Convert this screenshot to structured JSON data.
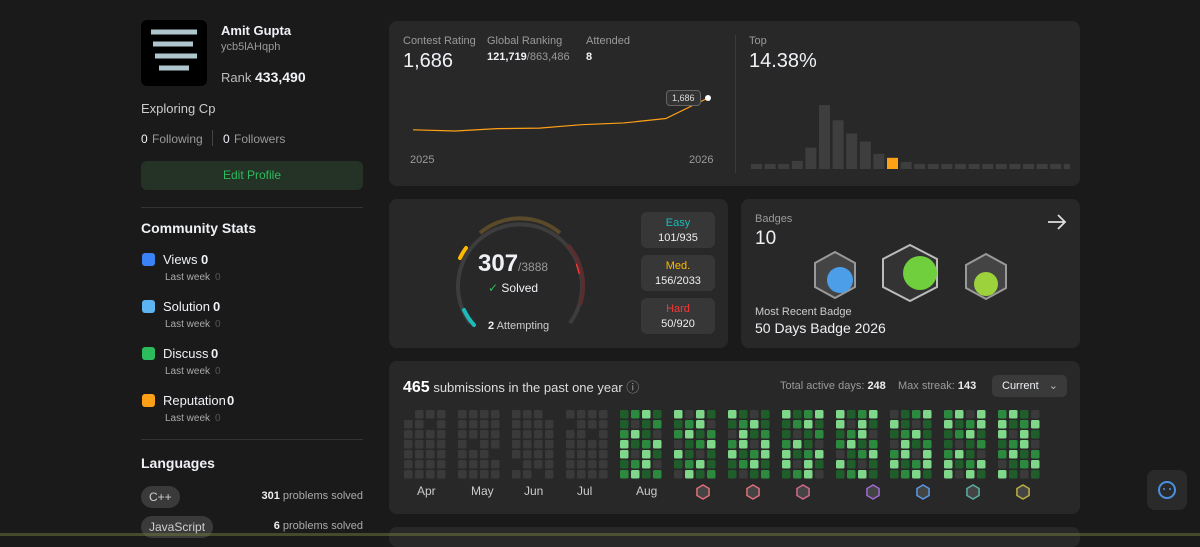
{
  "profile": {
    "name": "Amit Gupta",
    "username": "ycb5lAHqph",
    "rank_label": "Rank",
    "rank": "433,490",
    "bio": "Exploring Cp",
    "following_count": "0",
    "following_label": "Following",
    "followers_count": "0",
    "followers_label": "Followers",
    "edit_button": "Edit Profile"
  },
  "community_stats": {
    "title": "Community Stats",
    "items": [
      {
        "label": "Views",
        "value": "0",
        "period": "Last week",
        "change": "0",
        "color": "#3b82f6"
      },
      {
        "label": "Solution",
        "value": "0",
        "period": "Last week",
        "change": "0",
        "color": "#5eb4f0"
      },
      {
        "label": "Discuss",
        "value": "0",
        "period": "Last week",
        "change": "0",
        "color": "#2cbb5d"
      },
      {
        "label": "Reputation",
        "value": "0",
        "period": "Last week",
        "change": "0",
        "color": "#ffa116"
      }
    ]
  },
  "languages": {
    "title": "Languages",
    "items": [
      {
        "name": "C++",
        "count": "301",
        "suffix": "problems solved"
      },
      {
        "name": "JavaScript",
        "count": "6",
        "suffix": "problems solved"
      }
    ]
  },
  "contest": {
    "rating_label": "Contest Rating",
    "rating": "1,686",
    "global_ranking_label": "Global Ranking",
    "global_ranking": "121,719",
    "global_total": "/863,486",
    "attended_label": "Attended",
    "attended": "8",
    "chart_start": "2025",
    "chart_end": "2026",
    "tooltip": "1,686",
    "rating_history": [
      1500,
      1493,
      1507,
      1510,
      1530,
      1540,
      1566,
      1686
    ],
    "line_color": "#ffa116",
    "top_label": "Top",
    "top_value": "14.38%",
    "distribution": [
      5,
      5,
      5,
      8,
      21,
      63,
      48,
      35,
      27,
      15,
      11,
      7,
      5,
      5,
      5,
      5,
      5,
      5,
      5,
      5,
      5,
      5,
      5,
      5
    ],
    "highlight_index": 10,
    "bar_color": "#3e3e3e",
    "highlight_color": "#ffa116"
  },
  "solved": {
    "solved": "307",
    "total": "/3888",
    "solved_label": "Solved",
    "attempting_count": "2",
    "attempting_label": "Attempting",
    "difficulties": [
      {
        "label": "Easy",
        "value": "101/935",
        "color": "#1cbaba"
      },
      {
        "label": "Med.",
        "value": "156/2033",
        "color": "#ffb800"
      },
      {
        "label": "Hard",
        "value": "50/920",
        "color": "#f63737"
      }
    ]
  },
  "badges": {
    "title": "Badges",
    "count": "10",
    "recent_label": "Most Recent Badge",
    "recent_name": "50 Days Badge 2026"
  },
  "submissions": {
    "count": "465",
    "label": "submissions in the past one year",
    "active_days_label": "Total active days:",
    "active_days": "248",
    "max_streak_label": "Max streak:",
    "max_streak": "143",
    "dropdown": "Current",
    "months": [
      "Apr",
      "May",
      "Jun",
      "Jul",
      "Aug"
    ]
  }
}
